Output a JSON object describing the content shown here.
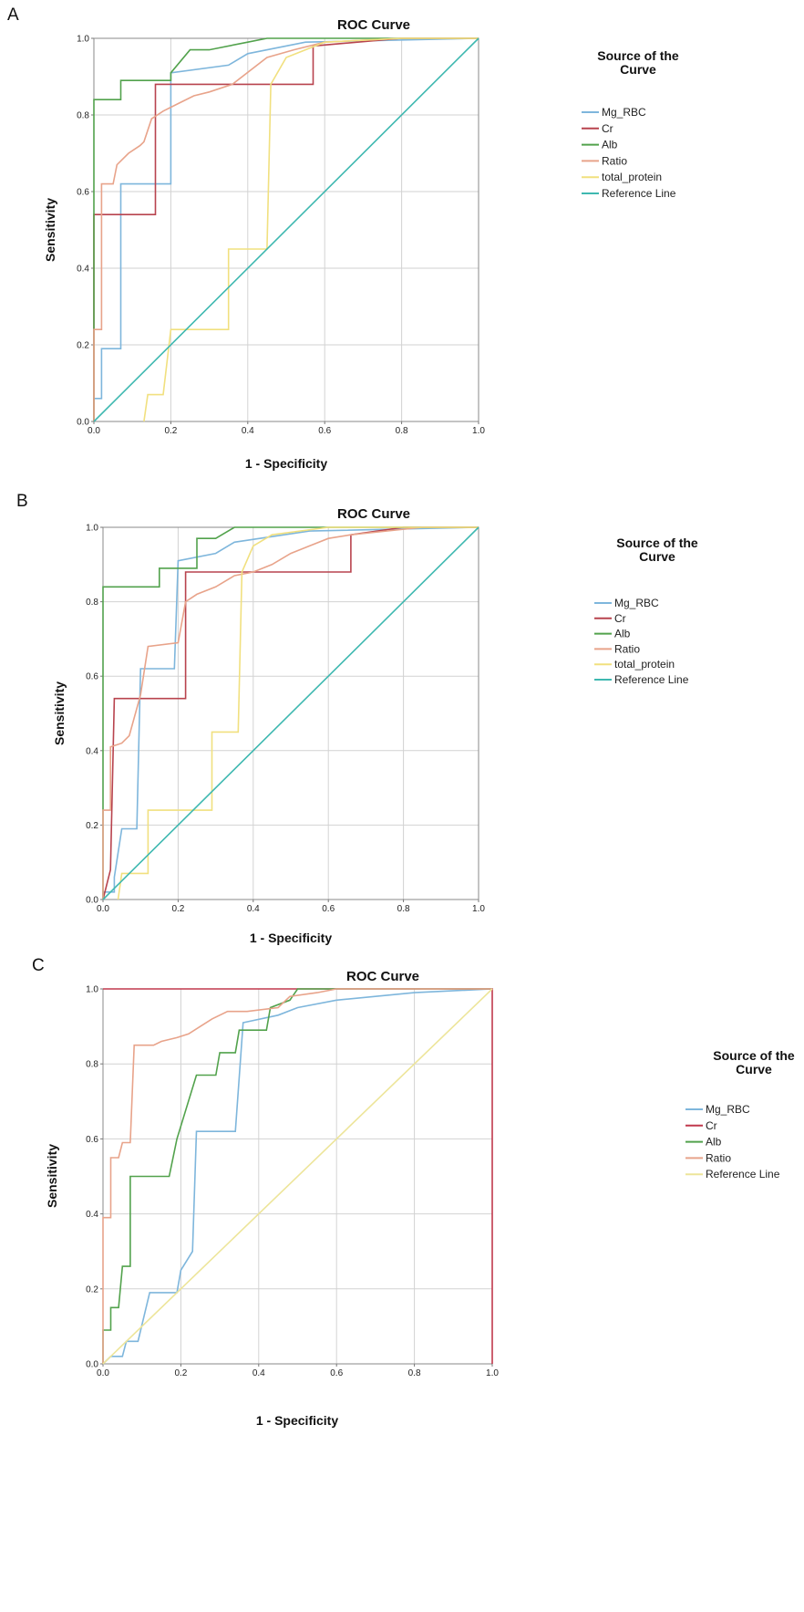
{
  "chart_data": [
    {
      "panel": "A",
      "type": "line",
      "title": "ROC Curve",
      "xlabel": "1 - Specificity",
      "ylabel": "Sensitivity",
      "xlim": [
        0,
        1
      ],
      "ylim": [
        0,
        1
      ],
      "xticks": [
        "0.0",
        "0.2",
        "0.4",
        "0.6",
        "0.8",
        "1.0"
      ],
      "yticks": [
        "0.0",
        "0.2",
        "0.4",
        "0.6",
        "0.8",
        "1.0"
      ],
      "grid": true,
      "legend_title": [
        "Source of the",
        "Curve"
      ],
      "legend_position": "right",
      "series": [
        {
          "name": "Mg_RBC",
          "color": "#7eb6dc",
          "points": [
            [
              0,
              0
            ],
            [
              0,
              0.06
            ],
            [
              0.02,
              0.06
            ],
            [
              0.02,
              0.19
            ],
            [
              0.07,
              0.19
            ],
            [
              0.07,
              0.62
            ],
            [
              0.2,
              0.62
            ],
            [
              0.2,
              0.91
            ],
            [
              0.35,
              0.93
            ],
            [
              0.4,
              0.96
            ],
            [
              0.55,
              0.99
            ],
            [
              1,
              1
            ]
          ]
        },
        {
          "name": "Cr",
          "color": "#b8434e",
          "points": [
            [
              0,
              0
            ],
            [
              0,
              0.54
            ],
            [
              0.16,
              0.54
            ],
            [
              0.16,
              0.88
            ],
            [
              0.57,
              0.88
            ],
            [
              0.57,
              0.98
            ],
            [
              0.8,
              1
            ],
            [
              1,
              1
            ]
          ]
        },
        {
          "name": "Alb",
          "color": "#52a24c",
          "points": [
            [
              0,
              0
            ],
            [
              0,
              0.84
            ],
            [
              0.07,
              0.84
            ],
            [
              0.07,
              0.89
            ],
            [
              0.2,
              0.89
            ],
            [
              0.2,
              0.91
            ],
            [
              0.25,
              0.97
            ],
            [
              0.3,
              0.97
            ],
            [
              0.4,
              0.99
            ],
            [
              0.45,
              1
            ],
            [
              1,
              1
            ]
          ]
        },
        {
          "name": "Ratio",
          "color": "#e8a38a",
          "points": [
            [
              0,
              0
            ],
            [
              0,
              0.24
            ],
            [
              0.02,
              0.24
            ],
            [
              0.02,
              0.62
            ],
            [
              0.05,
              0.62
            ],
            [
              0.06,
              0.67
            ],
            [
              0.09,
              0.7
            ],
            [
              0.12,
              0.72
            ],
            [
              0.13,
              0.73
            ],
            [
              0.15,
              0.79
            ],
            [
              0.18,
              0.81
            ],
            [
              0.22,
              0.83
            ],
            [
              0.26,
              0.85
            ],
            [
              0.3,
              0.86
            ],
            [
              0.36,
              0.88
            ],
            [
              0.45,
              0.95
            ],
            [
              0.52,
              0.97
            ],
            [
              0.6,
              0.99
            ],
            [
              0.8,
              1
            ],
            [
              1,
              1
            ]
          ]
        },
        {
          "name": "total_protein",
          "color": "#f1e07f",
          "points": [
            [
              0.13,
              0
            ],
            [
              0.14,
              0.07
            ],
            [
              0.18,
              0.07
            ],
            [
              0.2,
              0.24
            ],
            [
              0.35,
              0.24
            ],
            [
              0.35,
              0.45
            ],
            [
              0.45,
              0.45
            ],
            [
              0.46,
              0.88
            ],
            [
              0.5,
              0.95
            ],
            [
              0.6,
              0.99
            ],
            [
              0.8,
              1
            ],
            [
              1,
              1
            ]
          ]
        },
        {
          "name": "Reference Line",
          "color": "#3eb8b0",
          "points": [
            [
              0,
              0
            ],
            [
              1,
              1
            ]
          ]
        }
      ]
    },
    {
      "panel": "B",
      "type": "line",
      "title": "ROC Curve",
      "xlabel": "1 - Specificity",
      "ylabel": "Sensitivity",
      "xlim": [
        0,
        1
      ],
      "ylim": [
        0,
        1
      ],
      "xticks": [
        "0.0",
        "0.2",
        "0.4",
        "0.6",
        "0.8",
        "1.0"
      ],
      "yticks": [
        "0.0",
        "0.2",
        "0.4",
        "0.6",
        "0.8",
        "1.0"
      ],
      "grid": true,
      "legend_title": [
        "Source of the",
        "Curve"
      ],
      "legend_position": "right",
      "series": [
        {
          "name": "Mg_RBC",
          "color": "#7eb6dc",
          "points": [
            [
              0,
              0
            ],
            [
              0,
              0.02
            ],
            [
              0.03,
              0.02
            ],
            [
              0.03,
              0.06
            ],
            [
              0.05,
              0.19
            ],
            [
              0.09,
              0.19
            ],
            [
              0.1,
              0.62
            ],
            [
              0.19,
              0.62
            ],
            [
              0.2,
              0.91
            ],
            [
              0.3,
              0.93
            ],
            [
              0.35,
              0.96
            ],
            [
              0.55,
              0.99
            ],
            [
              1,
              1
            ]
          ]
        },
        {
          "name": "Cr",
          "color": "#b8434e",
          "points": [
            [
              0,
              0
            ],
            [
              0.02,
              0.08
            ],
            [
              0.03,
              0.54
            ],
            [
              0.22,
              0.54
            ],
            [
              0.22,
              0.88
            ],
            [
              0.66,
              0.88
            ],
            [
              0.66,
              0.98
            ],
            [
              0.8,
              1
            ],
            [
              1,
              1
            ]
          ]
        },
        {
          "name": "Alb",
          "color": "#52a24c",
          "points": [
            [
              0,
              0
            ],
            [
              0,
              0.84
            ],
            [
              0.15,
              0.84
            ],
            [
              0.15,
              0.89
            ],
            [
              0.25,
              0.89
            ],
            [
              0.25,
              0.97
            ],
            [
              0.3,
              0.97
            ],
            [
              0.35,
              1
            ],
            [
              1,
              1
            ]
          ]
        },
        {
          "name": "Ratio",
          "color": "#e8a38a",
          "points": [
            [
              0,
              0
            ],
            [
              0,
              0.24
            ],
            [
              0.02,
              0.24
            ],
            [
              0.02,
              0.41
            ],
            [
              0.05,
              0.42
            ],
            [
              0.07,
              0.44
            ],
            [
              0.1,
              0.55
            ],
            [
              0.12,
              0.68
            ],
            [
              0.2,
              0.69
            ],
            [
              0.22,
              0.8
            ],
            [
              0.25,
              0.82
            ],
            [
              0.3,
              0.84
            ],
            [
              0.35,
              0.87
            ],
            [
              0.4,
              0.88
            ],
            [
              0.45,
              0.9
            ],
            [
              0.5,
              0.93
            ],
            [
              0.55,
              0.95
            ],
            [
              0.6,
              0.97
            ],
            [
              0.66,
              0.98
            ],
            [
              0.85,
              1
            ],
            [
              1,
              1
            ]
          ]
        },
        {
          "name": "total_protein",
          "color": "#f1e07f",
          "points": [
            [
              0.04,
              0
            ],
            [
              0.05,
              0.07
            ],
            [
              0.12,
              0.07
            ],
            [
              0.12,
              0.24
            ],
            [
              0.29,
              0.24
            ],
            [
              0.29,
              0.45
            ],
            [
              0.36,
              0.45
            ],
            [
              0.37,
              0.88
            ],
            [
              0.4,
              0.95
            ],
            [
              0.45,
              0.98
            ],
            [
              0.6,
              1
            ],
            [
              1,
              1
            ]
          ]
        },
        {
          "name": "Reference Line",
          "color": "#3eb8b0",
          "points": [
            [
              0,
              0
            ],
            [
              1,
              1
            ]
          ]
        }
      ]
    },
    {
      "panel": "C",
      "type": "line",
      "title": "ROC Curve",
      "xlabel": "1 - Specificity",
      "ylabel": "Sensitivity",
      "xlim": [
        0,
        1
      ],
      "ylim": [
        0,
        1
      ],
      "xticks": [
        "0.0",
        "0.2",
        "0.4",
        "0.6",
        "0.8",
        "1.0"
      ],
      "yticks": [
        "0.0",
        "0.2",
        "0.4",
        "0.6",
        "0.8",
        "1.0"
      ],
      "grid": true,
      "legend_title": [
        "Source of the",
        "Curve"
      ],
      "legend_position": "right",
      "series": [
        {
          "name": "Mg_RBC",
          "color": "#7eb6dc",
          "points": [
            [
              0,
              0
            ],
            [
              0.02,
              0.02
            ],
            [
              0.05,
              0.02
            ],
            [
              0.06,
              0.06
            ],
            [
              0.09,
              0.06
            ],
            [
              0.12,
              0.19
            ],
            [
              0.19,
              0.19
            ],
            [
              0.2,
              0.25
            ],
            [
              0.23,
              0.3
            ],
            [
              0.24,
              0.62
            ],
            [
              0.34,
              0.62
            ],
            [
              0.36,
              0.91
            ],
            [
              0.45,
              0.93
            ],
            [
              0.5,
              0.95
            ],
            [
              0.6,
              0.97
            ],
            [
              0.8,
              0.99
            ],
            [
              1,
              1
            ]
          ]
        },
        {
          "name": "Cr",
          "color": "#c0394d",
          "points": [
            [
              0,
              1
            ],
            [
              1,
              1
            ],
            [
              1,
              0
            ]
          ]
        },
        {
          "name": "Alb",
          "color": "#52a24c",
          "points": [
            [
              0,
              0
            ],
            [
              0,
              0.09
            ],
            [
              0.02,
              0.09
            ],
            [
              0.02,
              0.15
            ],
            [
              0.04,
              0.15
            ],
            [
              0.05,
              0.26
            ],
            [
              0.07,
              0.26
            ],
            [
              0.07,
              0.5
            ],
            [
              0.17,
              0.5
            ],
            [
              0.19,
              0.6
            ],
            [
              0.24,
              0.77
            ],
            [
              0.29,
              0.77
            ],
            [
              0.3,
              0.83
            ],
            [
              0.34,
              0.83
            ],
            [
              0.35,
              0.89
            ],
            [
              0.42,
              0.89
            ],
            [
              0.43,
              0.95
            ],
            [
              0.48,
              0.97
            ],
            [
              0.5,
              1
            ],
            [
              1,
              1
            ]
          ]
        },
        {
          "name": "Ratio",
          "color": "#e8a38a",
          "points": [
            [
              0,
              0
            ],
            [
              0,
              0.39
            ],
            [
              0.02,
              0.39
            ],
            [
              0.02,
              0.55
            ],
            [
              0.04,
              0.55
            ],
            [
              0.05,
              0.59
            ],
            [
              0.07,
              0.59
            ],
            [
              0.08,
              0.85
            ],
            [
              0.13,
              0.85
            ],
            [
              0.15,
              0.86
            ],
            [
              0.19,
              0.87
            ],
            [
              0.22,
              0.88
            ],
            [
              0.25,
              0.9
            ],
            [
              0.28,
              0.92
            ],
            [
              0.32,
              0.94
            ],
            [
              0.37,
              0.94
            ],
            [
              0.45,
              0.95
            ],
            [
              0.48,
              0.98
            ],
            [
              0.55,
              0.99
            ],
            [
              0.6,
              1
            ],
            [
              1,
              1
            ]
          ]
        },
        {
          "name": "Reference Line",
          "color": "#ede59a",
          "points": [
            [
              0,
              0
            ],
            [
              1,
              1
            ]
          ]
        }
      ]
    }
  ]
}
